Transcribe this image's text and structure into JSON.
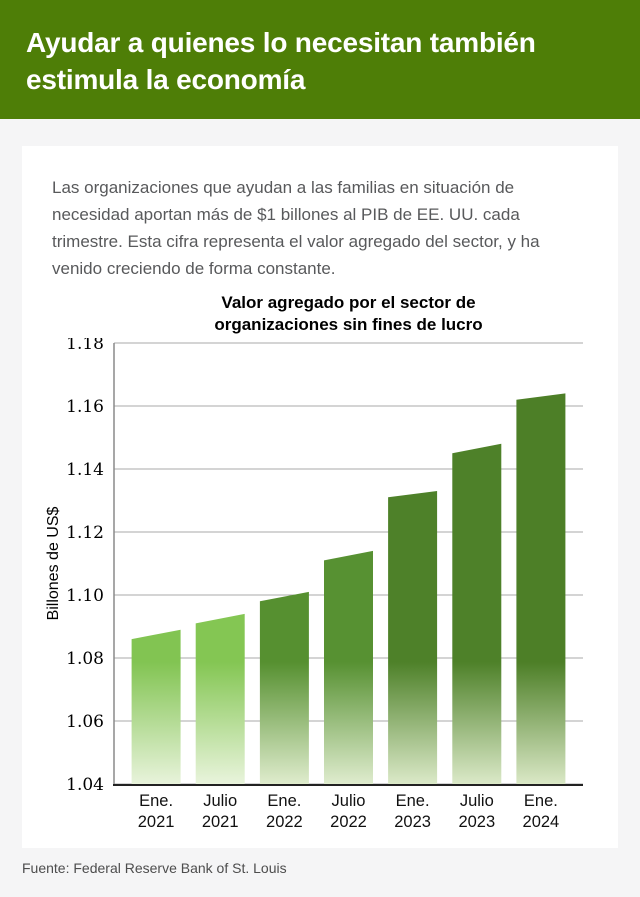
{
  "header": {
    "title": "Ayudar a quienes lo necesitan también estimula la economía",
    "background": "#4e7e07"
  },
  "intro": {
    "text": "Las organizaciones que ayudan a las familias en situación de necesidad aportan más de $1 billones al PIB de EE. UU. cada trimestre. Esta cifra representa el valor agregado del sector, y ha venido creciendo de forma constante."
  },
  "chart_data": {
    "type": "bar",
    "title": "Valor agregado por el sector de organizaciones sin fines de lucro",
    "ylabel": "Billones de US$",
    "ylim": [
      1.04,
      1.18
    ],
    "yticks": [
      1.18,
      1.16,
      1.14,
      1.12,
      1.1,
      1.08,
      1.06,
      1.04
    ],
    "grid": true,
    "legend": "none",
    "categories": [
      "Ene. 2021",
      "Julio 2021",
      "Ene. 2022",
      "Julio 2022",
      "Ene. 2023",
      "Julio 2023",
      "Ene. 2024"
    ],
    "bars": [
      {
        "label": [
          "Ene.",
          "2021"
        ],
        "values": [
          1.086,
          1.089
        ],
        "color": "#82c452",
        "fade_color": "#e8f3db"
      },
      {
        "label": [
          "Julio",
          "2021"
        ],
        "values": [
          1.091,
          1.094
        ],
        "color": "#84c653",
        "fade_color": "#e9f4dc"
      },
      {
        "label": [
          "Ene.",
          "2022"
        ],
        "values": [
          1.098,
          1.101
        ],
        "color": "#569030",
        "fade_color": "#dfeccd"
      },
      {
        "label": [
          "Julio",
          "2022"
        ],
        "values": [
          1.111,
          1.114
        ],
        "color": "#579132",
        "fade_color": "#dfecce"
      },
      {
        "label": [
          "Ene.",
          "2023"
        ],
        "values": [
          1.131,
          1.133
        ],
        "color": "#4e8129",
        "fade_color": "#dbe9c8"
      },
      {
        "label": [
          "Julio",
          "2023"
        ],
        "values": [
          1.145,
          1.148
        ],
        "color": "#4e8129",
        "fade_color": "#dbe9c8"
      },
      {
        "label": [
          "Ene.",
          "2024"
        ],
        "values": [
          1.162,
          1.164
        ],
        "color": "#4d7f27",
        "fade_color": "#dae8c6"
      }
    ],
    "axis_colors": {
      "gridline": "#a8a8a8",
      "left_spine": "#8a8a8a",
      "bottom_axis": "#222222"
    }
  },
  "footer": {
    "source": "Fuente: Federal Reserve Bank of St. Louis"
  }
}
